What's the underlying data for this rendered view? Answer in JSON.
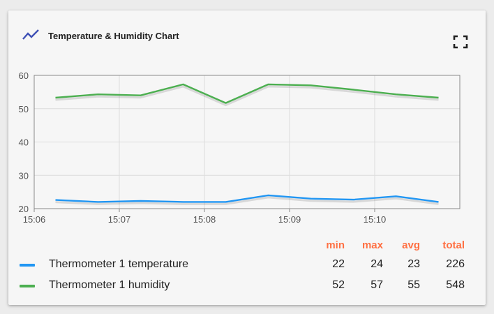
{
  "widget": {
    "title": "Temperature & Humidity Chart",
    "icon": "timeline-chart-icon",
    "fullscreen_icon": "fullscreen-icon",
    "accent_color": "#3f51b5"
  },
  "legend": {
    "headers": {
      "min": "min",
      "max": "max",
      "avg": "avg",
      "total": "total"
    },
    "header_color": "#ff7043",
    "rows": [
      {
        "label": "Thermometer 1 temperature",
        "color": "#2196f3",
        "min": "22",
        "max": "24",
        "avg": "23",
        "total": "226"
      },
      {
        "label": "Thermometer 1 humidity",
        "color": "#4caf50",
        "min": "52",
        "max": "57",
        "avg": "55",
        "total": "548"
      }
    ]
  },
  "chart_data": {
    "type": "line",
    "ylim": [
      20,
      60
    ],
    "yticks": [
      "20",
      "30",
      "40",
      "50",
      "60"
    ],
    "xlim": [
      "15:06",
      "15:11"
    ],
    "xticks": [
      "15:06",
      "15:07",
      "15:08",
      "15:09",
      "15:10"
    ],
    "grid": true,
    "series": [
      {
        "name": "Thermometer 1 temperature",
        "color": "#2196f3",
        "points": [
          {
            "x": "15:06:15",
            "y": 22.6
          },
          {
            "x": "15:06:45",
            "y": 22.0
          },
          {
            "x": "15:07:15",
            "y": 22.3
          },
          {
            "x": "15:07:45",
            "y": 22.0
          },
          {
            "x": "15:08:15",
            "y": 22.0
          },
          {
            "x": "15:08:45",
            "y": 24.0
          },
          {
            "x": "15:09:15",
            "y": 23.0
          },
          {
            "x": "15:09:45",
            "y": 22.7
          },
          {
            "x": "15:10:15",
            "y": 23.7
          },
          {
            "x": "15:10:45",
            "y": 22.0
          }
        ]
      },
      {
        "name": "Thermometer 1 humidity",
        "color": "#4caf50",
        "points": [
          {
            "x": "15:06:15",
            "y": 53.3
          },
          {
            "x": "15:06:45",
            "y": 54.3
          },
          {
            "x": "15:07:15",
            "y": 54.0
          },
          {
            "x": "15:07:45",
            "y": 57.3
          },
          {
            "x": "15:08:15",
            "y": 51.7
          },
          {
            "x": "15:08:45",
            "y": 57.3
          },
          {
            "x": "15:09:15",
            "y": 57.0
          },
          {
            "x": "15:09:45",
            "y": 55.7
          },
          {
            "x": "15:10:15",
            "y": 54.3
          },
          {
            "x": "15:10:45",
            "y": 53.3
          }
        ]
      }
    ]
  }
}
